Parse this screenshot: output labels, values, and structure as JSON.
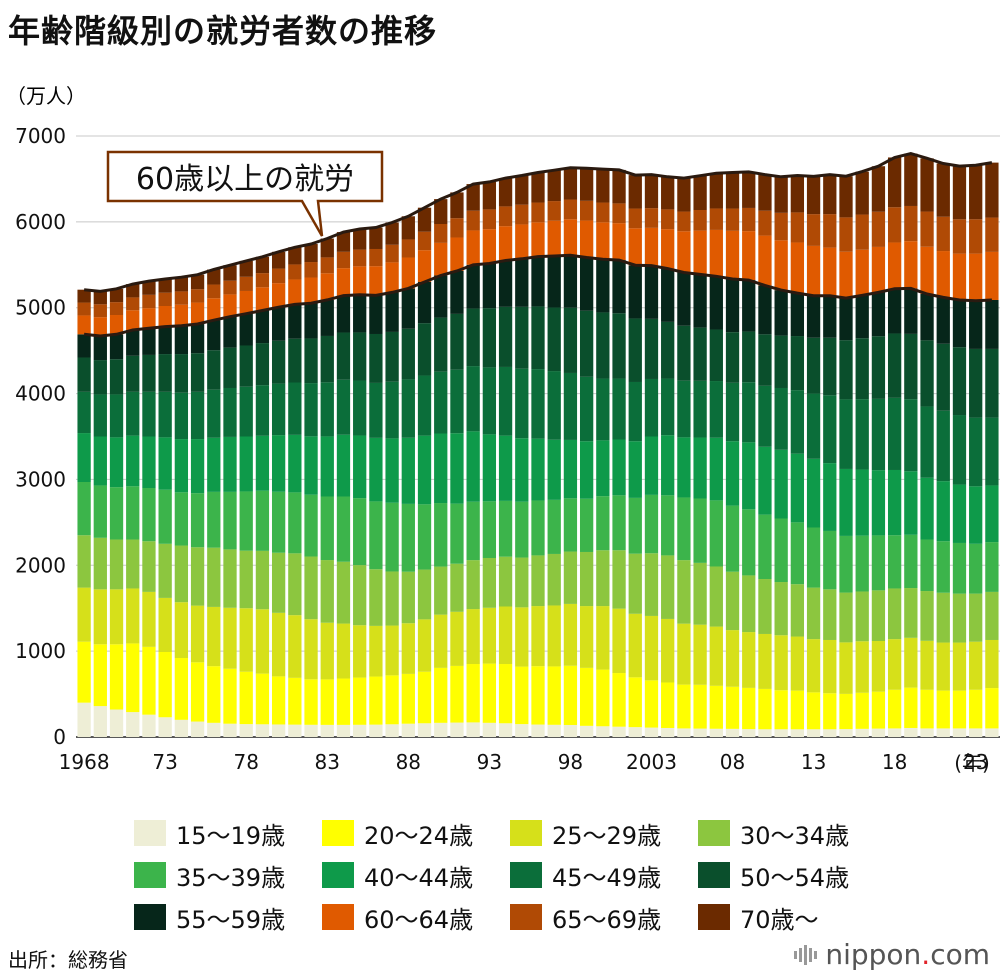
{
  "chart_data": {
    "type": "bar",
    "stacked": true,
    "title": "年齢階級別の就労者数の推移",
    "ylabel": "（万人）",
    "xlabel_unit": "(年)",
    "ylim": [
      0,
      7000
    ],
    "yticks": [
      "0",
      "1000",
      "2000",
      "3000",
      "4000",
      "5000",
      "6000",
      "7000"
    ],
    "x_tick_labels": [
      "1968",
      "73",
      "78",
      "83",
      "88",
      "93",
      "98",
      "2003",
      "08",
      "13",
      "18",
      "23"
    ],
    "x_tick_years": [
      1968,
      1973,
      1978,
      1983,
      1988,
      1993,
      1998,
      2003,
      2008,
      2013,
      2018,
      2023
    ],
    "years": [
      1968,
      1969,
      1970,
      1971,
      1972,
      1973,
      1974,
      1975,
      1976,
      1977,
      1978,
      1979,
      1980,
      1981,
      1982,
      1983,
      1984,
      1985,
      1986,
      1987,
      1988,
      1989,
      1990,
      1991,
      1992,
      1993,
      1994,
      1995,
      1996,
      1997,
      1998,
      1999,
      2000,
      2001,
      2002,
      2003,
      2004,
      2005,
      2006,
      2007,
      2008,
      2009,
      2010,
      2011,
      2012,
      2013,
      2014,
      2015,
      2016,
      2017,
      2018,
      2019,
      2020,
      2021,
      2022,
      2023,
      2024
    ],
    "annotation": "60歳以上の就労",
    "grid": true,
    "legend_position": "bottom",
    "series": [
      {
        "name": "15〜19歳",
        "color": "#eeeed6",
        "values": [
          400,
          360,
          320,
          290,
          260,
          230,
          200,
          180,
          165,
          155,
          150,
          148,
          146,
          144,
          142,
          141,
          141,
          142,
          144,
          148,
          155,
          160,
          165,
          168,
          170,
          165,
          160,
          150,
          145,
          142,
          140,
          130,
          125,
          120,
          115,
          110,
          105,
          100,
          98,
          96,
          95,
          92,
          90,
          90,
          90,
          90,
          90,
          92,
          95,
          98,
          100,
          105,
          100,
          100,
          100,
          100,
          100
        ]
      },
      {
        "name": "20〜24歳",
        "color": "#ffff00",
        "values": [
          710,
          720,
          760,
          800,
          790,
          760,
          720,
          690,
          660,
          640,
          610,
          590,
          560,
          545,
          530,
          530,
          540,
          550,
          560,
          570,
          580,
          600,
          640,
          660,
          680,
          690,
          690,
          670,
          680,
          680,
          690,
          675,
          660,
          625,
          580,
          550,
          530,
          510,
          510,
          500,
          490,
          480,
          470,
          455,
          450,
          430,
          420,
          410,
          420,
          430,
          450,
          470,
          450,
          440,
          440,
          450,
          470
        ]
      },
      {
        "name": "25〜29歳",
        "color": "#d6e01a",
        "values": [
          630,
          640,
          640,
          640,
          640,
          630,
          650,
          660,
          690,
          710,
          740,
          750,
          740,
          730,
          700,
          660,
          640,
          610,
          590,
          580,
          590,
          610,
          620,
          630,
          640,
          650,
          670,
          690,
          700,
          710,
          720,
          720,
          740,
          750,
          740,
          750,
          740,
          710,
          700,
          690,
          660,
          650,
          640,
          640,
          630,
          620,
          620,
          600,
          600,
          590,
          590,
          580,
          570,
          560,
          560,
          560,
          560
        ]
      },
      {
        "name": "30〜34歳",
        "color": "#8cc63f",
        "values": [
          610,
          600,
          580,
          570,
          590,
          630,
          660,
          680,
          690,
          680,
          670,
          680,
          700,
          720,
          730,
          730,
          720,
          700,
          660,
          630,
          600,
          580,
          560,
          560,
          570,
          580,
          580,
          580,
          590,
          600,
          610,
          630,
          650,
          680,
          700,
          730,
          740,
          740,
          720,
          700,
          680,
          660,
          640,
          620,
          610,
          600,
          590,
          580,
          580,
          590,
          590,
          580,
          580,
          580,
          570,
          560,
          560
        ]
      },
      {
        "name": "35〜39歳",
        "color": "#3cb44b",
        "values": [
          620,
          610,
          610,
          620,
          620,
          630,
          620,
          630,
          650,
          670,
          690,
          700,
          710,
          710,
          720,
          740,
          760,
          780,
          790,
          800,
          790,
          760,
          740,
          700,
          680,
          660,
          650,
          650,
          640,
          630,
          620,
          620,
          630,
          640,
          650,
          680,
          700,
          730,
          750,
          770,
          770,
          770,
          750,
          740,
          720,
          700,
          680,
          660,
          650,
          640,
          620,
          620,
          600,
          600,
          590,
          580,
          580
        ]
      },
      {
        "name": "40〜44歳",
        "color": "#0e9a4a",
        "values": [
          570,
          570,
          580,
          590,
          600,
          610,
          620,
          630,
          630,
          640,
          640,
          640,
          660,
          670,
          680,
          700,
          720,
          730,
          740,
          750,
          770,
          800,
          810,
          820,
          820,
          780,
          760,
          740,
          720,
          700,
          680,
          670,
          650,
          650,
          660,
          680,
          700,
          700,
          710,
          730,
          750,
          780,
          790,
          800,
          800,
          800,
          790,
          780,
          770,
          760,
          760,
          740,
          720,
          700,
          680,
          670,
          660
        ]
      },
      {
        "name": "45〜49歳",
        "color": "#0b6e3a",
        "values": [
          480,
          490,
          500,
          510,
          520,
          530,
          540,
          550,
          560,
          570,
          580,
          590,
          600,
          610,
          620,
          630,
          640,
          640,
          640,
          660,
          680,
          700,
          720,
          740,
          760,
          780,
          800,
          810,
          810,
          800,
          780,
          750,
          720,
          710,
          690,
          670,
          660,
          660,
          660,
          660,
          680,
          700,
          710,
          720,
          740,
          760,
          790,
          810,
          820,
          830,
          840,
          840,
          830,
          820,
          810,
          800,
          790
        ]
      },
      {
        "name": "50〜54歳",
        "color": "#0a4f2c",
        "values": [
          400,
          400,
          410,
          420,
          430,
          440,
          450,
          450,
          460,
          470,
          480,
          490,
          500,
          510,
          520,
          540,
          550,
          560,
          570,
          580,
          590,
          610,
          630,
          650,
          670,
          690,
          700,
          720,
          730,
          740,
          760,
          770,
          770,
          760,
          740,
          700,
          660,
          640,
          620,
          600,
          590,
          590,
          600,
          610,
          630,
          650,
          670,
          690,
          710,
          730,
          750,
          760,
          770,
          780,
          790,
          800,
          800
        ]
      },
      {
        "name": "55〜59歳",
        "color": "#06261a",
        "values": [
          270,
          280,
          290,
          300,
          310,
          320,
          330,
          340,
          350,
          360,
          370,
          380,
          390,
          400,
          410,
          420,
          430,
          440,
          450,
          460,
          470,
          480,
          490,
          500,
          510,
          520,
          540,
          560,
          580,
          600,
          610,
          620,
          620,
          620,
          620,
          620,
          620,
          620,
          620,
          620,
          620,
          600,
          570,
          530,
          500,
          490,
          490,
          490,
          500,
          510,
          520,
          530,
          540,
          540,
          550,
          560,
          570
        ]
      },
      {
        "name": "60〜64歳",
        "color": "#e05a00",
        "values": [
          220,
          220,
          225,
          230,
          235,
          240,
          245,
          250,
          255,
          260,
          265,
          270,
          280,
          290,
          300,
          310,
          320,
          330,
          340,
          350,
          360,
          370,
          380,
          390,
          400,
          400,
          400,
          400,
          400,
          410,
          420,
          430,
          430,
          430,
          430,
          440,
          460,
          480,
          510,
          540,
          560,
          570,
          580,
          580,
          590,
          580,
          560,
          540,
          530,
          530,
          540,
          550,
          550,
          540,
          540,
          550,
          560
        ]
      },
      {
        "name": "65〜69歳",
        "color": "#b04a05",
        "values": [
          150,
          150,
          150,
          150,
          155,
          155,
          155,
          155,
          160,
          160,
          165,
          165,
          170,
          175,
          180,
          185,
          190,
          195,
          200,
          205,
          210,
          215,
          220,
          225,
          230,
          230,
          230,
          230,
          230,
          230,
          230,
          230,
          230,
          230,
          230,
          230,
          230,
          230,
          240,
          250,
          260,
          270,
          290,
          320,
          350,
          370,
          390,
          400,
          410,
          410,
          410,
          410,
          410,
          400,
          400,
          400,
          400
        ]
      },
      {
        "name": "70歳〜",
        "color": "#6b2a00",
        "values": [
          150,
          150,
          155,
          155,
          160,
          160,
          165,
          170,
          175,
          180,
          185,
          190,
          195,
          200,
          210,
          220,
          230,
          240,
          250,
          260,
          270,
          280,
          290,
          300,
          310,
          320,
          330,
          340,
          350,
          360,
          370,
          380,
          390,
          390,
          390,
          390,
          380,
          390,
          400,
          410,
          420,
          420,
          420,
          420,
          430,
          440,
          460,
          480,
          500,
          530,
          580,
          610,
          620,
          620,
          620,
          630,
          640
        ]
      }
    ]
  },
  "source": "出所：総務省",
  "brand": {
    "name": "nippon",
    "dot": ".",
    "suffix": "com"
  }
}
